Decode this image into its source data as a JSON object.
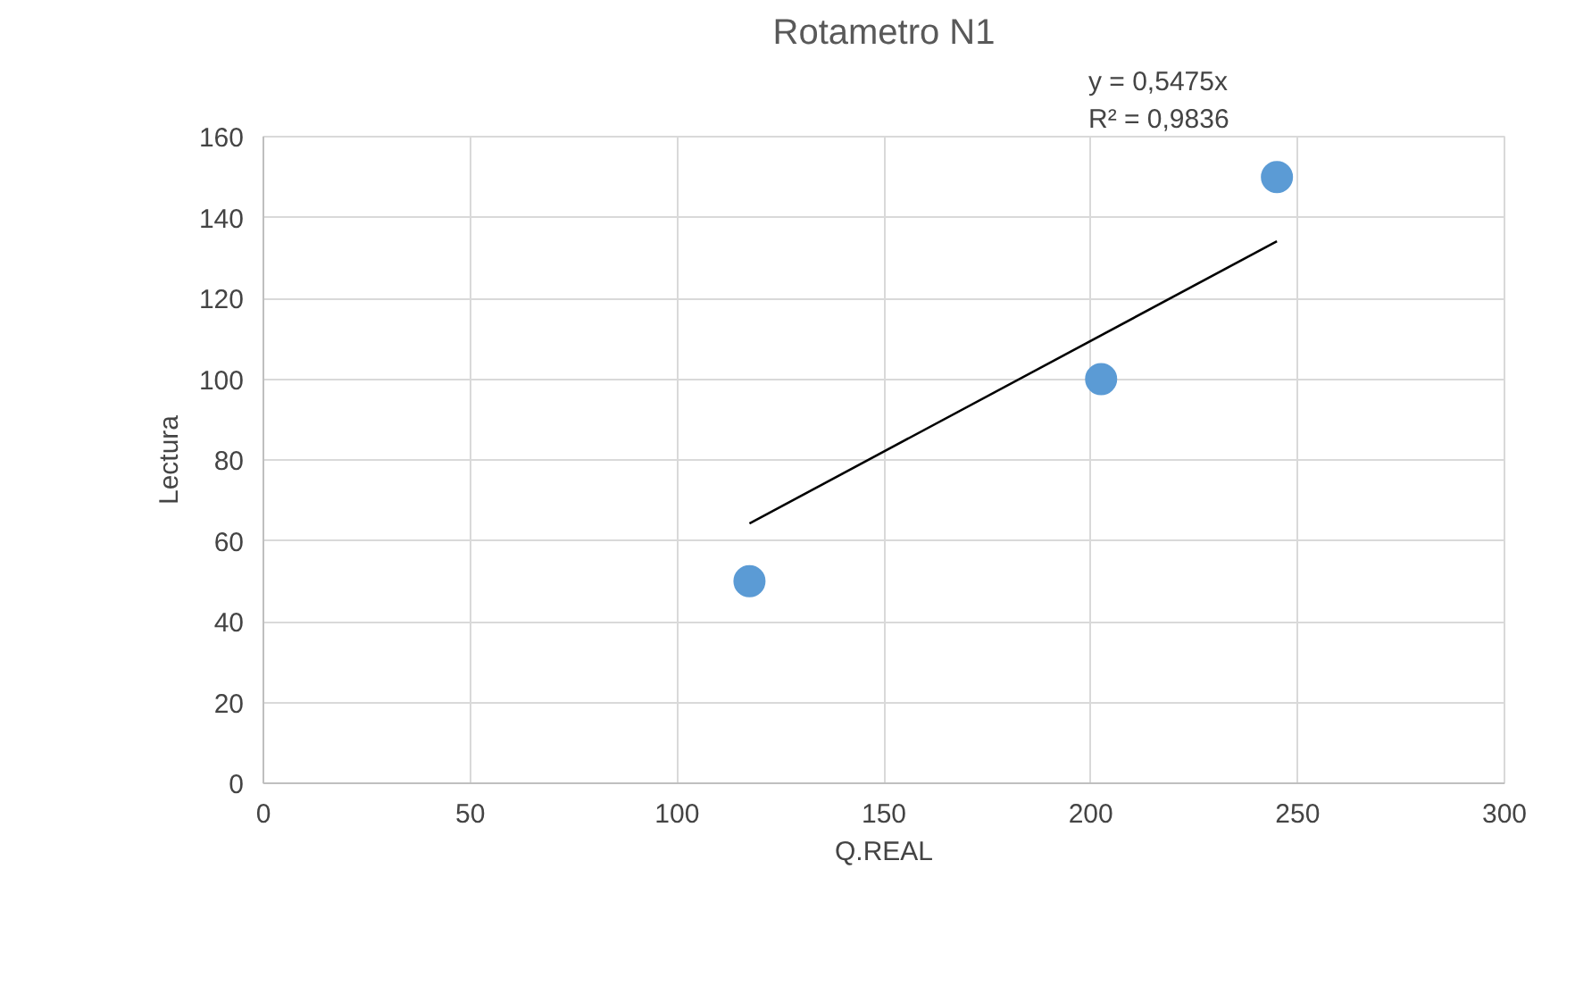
{
  "chart_data": {
    "type": "scatter",
    "title": "Rotametro N1",
    "xlabel": "Q.REAL",
    "ylabel": "Lectura",
    "annotations": [
      "y = 0,5475x",
      "R² = 0,9836"
    ],
    "xlim": [
      0,
      300
    ],
    "xticks": [
      0,
      50,
      100,
      150,
      200,
      250,
      300
    ],
    "ylim": [
      0,
      160
    ],
    "yticks": [
      0,
      20,
      40,
      60,
      80,
      100,
      120,
      140,
      160
    ],
    "grid": true,
    "marker": "circle",
    "series": [
      {
        "color": "#5b9bd5",
        "x": [
          117.5,
          202.5,
          245
        ],
        "values": [
          50,
          100,
          150
        ]
      },
      {
        "type": "line",
        "color": "#000000",
        "line_style": "solid",
        "marker": "none",
        "x": [
          117.5,
          245
        ],
        "values": [
          64.3,
          134.1
        ]
      }
    ]
  }
}
